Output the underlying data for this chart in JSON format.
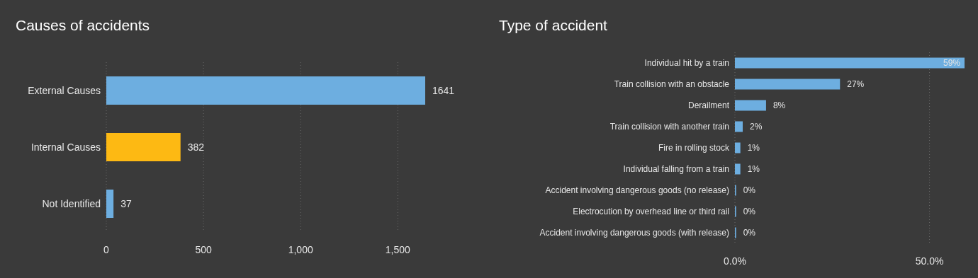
{
  "chart_data": [
    {
      "type": "bar",
      "orientation": "horizontal",
      "title": "Causes of accidents",
      "categories": [
        "External Causes",
        "Internal Causes",
        "Not Identified"
      ],
      "values": [
        1641,
        382,
        37
      ],
      "colors": [
        "#6daee0",
        "#fdb913",
        "#6daee0"
      ],
      "xlim": [
        0,
        1641
      ],
      "xticks": [
        0,
        500,
        {
          "value": 1000,
          "label": "1,000"
        },
        {
          "value": 1500,
          "label": "1,500"
        }
      ],
      "grid": "x",
      "data_labels": true,
      "legend": false
    },
    {
      "type": "bar",
      "orientation": "horizontal",
      "title": "Type of accident",
      "categories": [
        "Individual hit by a train",
        "Train collision with an obstacle",
        "Derailment",
        "Train collision with another train",
        "Fire in rolling stock",
        "Individual falling from a train",
        "Accident involving dangerous goods (no release)",
        "Electrocution by overhead line or third rail",
        "Accident involving dangerous goods (with release)"
      ],
      "values": [
        59,
        27,
        8,
        2,
        1.4,
        1.4,
        0.3,
        0.3,
        0.3
      ],
      "color": "#6daee0",
      "value_labels": [
        "59%",
        "27%",
        "8%",
        "2%",
        "1%",
        "1%",
        "0%",
        "0%",
        "0%"
      ],
      "xlim": [
        0,
        59
      ],
      "xticks": [
        {
          "value": 0,
          "label": "0.0%"
        },
        {
          "value": 50,
          "label": "50.0%"
        }
      ],
      "grid": "x",
      "legend": false
    }
  ]
}
